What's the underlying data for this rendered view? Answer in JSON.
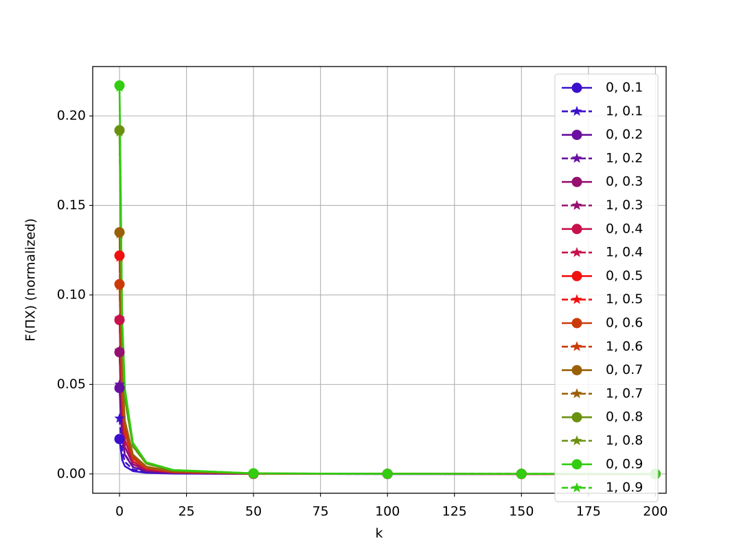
{
  "chart_data": {
    "type": "line",
    "xlabel": "k",
    "ylabel": "F(ΠX) (normalized)",
    "x": [
      0,
      1,
      2,
      5,
      10,
      20,
      50,
      100,
      150,
      200
    ],
    "xlim": [
      -10,
      204
    ],
    "xticks": [
      0,
      25,
      50,
      75,
      100,
      125,
      150,
      175,
      200
    ],
    "ylim": [
      -0.0108,
      0.2276
    ],
    "yticks": [
      {
        "value": 0,
        "label": "0.00"
      },
      {
        "value": 0.05,
        "label": "0.05"
      },
      {
        "value": 0.1,
        "label": "0.10"
      },
      {
        "value": 0.15,
        "label": "0.15"
      },
      {
        "value": 0.2,
        "label": "0.20"
      }
    ],
    "grid": true,
    "legend": "upper right",
    "markevery": 50,
    "series": [
      {
        "name": "0, 0.1",
        "color": "#3a10cc",
        "linestyle": "solid",
        "marker": "circle",
        "values": [
          0.0195,
          0.0078,
          0.0043,
          0.0016,
          0.0006,
          0.0002,
          3e-05,
          1e-05,
          0,
          0
        ]
      },
      {
        "name": "1, 0.1",
        "color": "#3a10cc",
        "linestyle": "dashed",
        "marker": "star",
        "values": [
          0.031,
          0.0124,
          0.0068,
          0.0025,
          0.0009,
          0.0003,
          5e-05,
          1e-05,
          1e-05,
          0
        ]
      },
      {
        "name": "0, 0.2",
        "color": "#6a0fa0",
        "linestyle": "solid",
        "marker": "circle",
        "values": [
          0.048,
          0.0192,
          0.0106,
          0.0038,
          0.0014,
          0.0005,
          7e-05,
          2e-05,
          1e-05,
          0
        ]
      },
      {
        "name": "1, 0.2",
        "color": "#6a0fa0",
        "linestyle": "dashed",
        "marker": "star",
        "values": [
          0.05,
          0.02,
          0.011,
          0.004,
          0.0015,
          0.0005,
          8e-05,
          2e-05,
          1e-05,
          1e-05
        ]
      },
      {
        "name": "0, 0.3",
        "color": "#95106f",
        "linestyle": "solid",
        "marker": "circle",
        "values": [
          0.068,
          0.0272,
          0.015,
          0.0054,
          0.002,
          0.0007,
          0.0001,
          3e-05,
          1e-05,
          1e-05
        ]
      },
      {
        "name": "1, 0.3",
        "color": "#95106f",
        "linestyle": "dashed",
        "marker": "star",
        "values": [
          0.069,
          0.0276,
          0.0152,
          0.0055,
          0.0021,
          0.0007,
          0.0001,
          3e-05,
          1e-05,
          1e-05
        ]
      },
      {
        "name": "0, 0.4",
        "color": "#c8104a",
        "linestyle": "solid",
        "marker": "circle",
        "values": [
          0.086,
          0.0344,
          0.0189,
          0.0069,
          0.0026,
          0.0009,
          0.00013,
          3e-05,
          2e-05,
          1e-05
        ]
      },
      {
        "name": "1, 0.4",
        "color": "#c8104a",
        "linestyle": "dashed",
        "marker": "star",
        "values": [
          0.087,
          0.0348,
          0.0191,
          0.007,
          0.0026,
          0.0009,
          0.00013,
          3e-05,
          2e-05,
          1e-05
        ]
      },
      {
        "name": "0, 0.5",
        "color": "#f01010",
        "linestyle": "solid",
        "marker": "circle",
        "values": [
          0.122,
          0.0488,
          0.0268,
          0.0098,
          0.0037,
          0.0012,
          0.00018,
          5e-05,
          2e-05,
          1e-05
        ]
      },
      {
        "name": "1, 0.5",
        "color": "#f01010",
        "linestyle": "dashed",
        "marker": "star",
        "values": [
          0.121,
          0.0484,
          0.0266,
          0.0097,
          0.0036,
          0.0012,
          0.00018,
          5e-05,
          2e-05,
          1e-05
        ]
      },
      {
        "name": "0, 0.6",
        "color": "#cc3a0a",
        "linestyle": "solid",
        "marker": "circle",
        "values": [
          0.106,
          0.0424,
          0.0233,
          0.0085,
          0.0032,
          0.0011,
          0.00016,
          4e-05,
          2e-05,
          1e-05
        ]
      },
      {
        "name": "1, 0.6",
        "color": "#cc3a0a",
        "linestyle": "dashed",
        "marker": "star",
        "values": [
          0.105,
          0.042,
          0.0231,
          0.0084,
          0.0032,
          0.0011,
          0.00016,
          4e-05,
          2e-05,
          1e-05
        ]
      },
      {
        "name": "0, 0.7",
        "color": "#9a6008",
        "linestyle": "solid",
        "marker": "circle",
        "values": [
          0.135,
          0.054,
          0.0297,
          0.0108,
          0.0041,
          0.0014,
          0.0002,
          5e-05,
          3e-05,
          1e-05
        ]
      },
      {
        "name": "1, 0.7",
        "color": "#9a6008",
        "linestyle": "dashed",
        "marker": "star",
        "values": [
          0.134,
          0.0536,
          0.0295,
          0.0107,
          0.004,
          0.0013,
          0.0002,
          5e-05,
          3e-05,
          1e-05
        ]
      },
      {
        "name": "0, 0.8",
        "color": "#6a9010",
        "linestyle": "solid",
        "marker": "circle",
        "values": [
          0.192,
          0.0768,
          0.0422,
          0.0154,
          0.0058,
          0.0019,
          0.00029,
          8e-05,
          4e-05,
          2e-05
        ]
      },
      {
        "name": "1, 0.8",
        "color": "#6a9010",
        "linestyle": "dashed",
        "marker": "star",
        "values": [
          0.191,
          0.0764,
          0.042,
          0.0153,
          0.0057,
          0.0019,
          0.00029,
          8e-05,
          4e-05,
          2e-05
        ]
      },
      {
        "name": "0, 0.9",
        "color": "#33cc11",
        "linestyle": "solid",
        "marker": "circle",
        "values": [
          0.217,
          0.0868,
          0.0477,
          0.0174,
          0.0065,
          0.0022,
          0.00033,
          9e-05,
          4e-05,
          2e-05
        ]
      },
      {
        "name": "1, 0.9",
        "color": "#33cc11",
        "linestyle": "dashed",
        "marker": "star",
        "values": [
          0.216,
          0.0864,
          0.0475,
          0.0173,
          0.0065,
          0.0022,
          0.00032,
          9e-05,
          4e-05,
          2e-05
        ]
      }
    ]
  }
}
